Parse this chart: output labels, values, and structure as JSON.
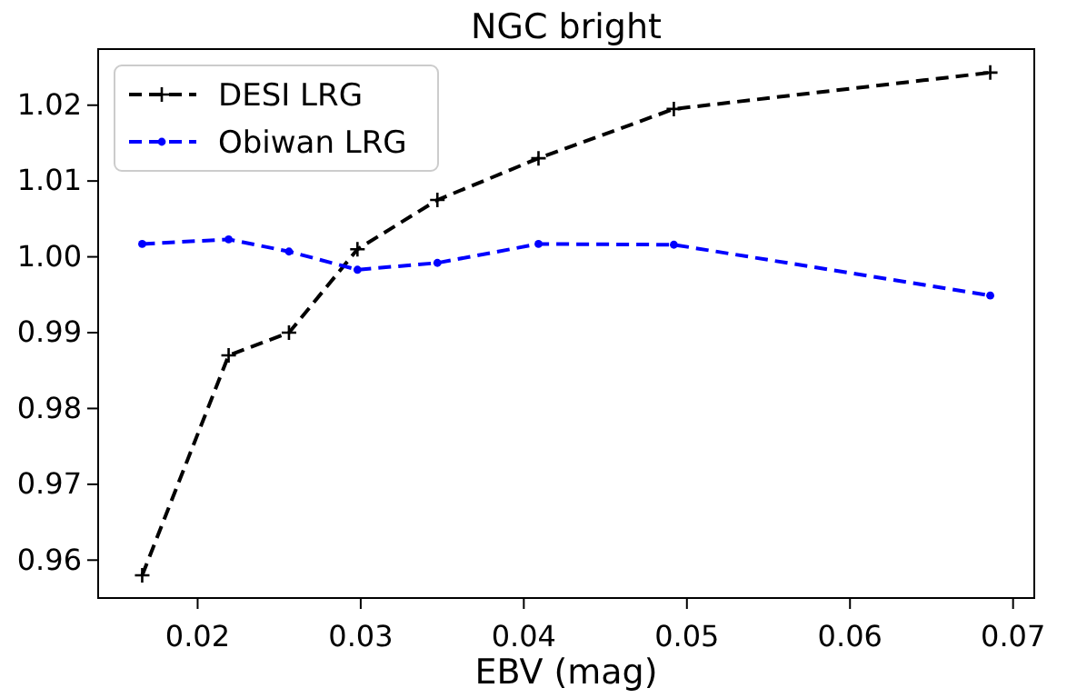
{
  "chart_data": {
    "type": "line",
    "title": "NGC bright",
    "xlabel": "EBV (mag)",
    "x": [
      0.0166,
      0.0219,
      0.0256,
      0.0298,
      0.0347,
      0.0409,
      0.0492,
      0.0686
    ],
    "series": [
      {
        "name": "DESI LRG",
        "color": "#000000",
        "marker": "cross",
        "values": [
          0.958,
          0.987,
          0.99,
          1.001,
          1.0075,
          1.013,
          1.0195,
          1.0243
        ]
      },
      {
        "name": "Obiwan LRG",
        "color": "#0000ff",
        "marker": "circle",
        "values": [
          1.0017,
          1.0023,
          1.0007,
          0.9983,
          0.9992,
          1.0017,
          1.0016,
          0.9949
        ]
      }
    ],
    "xlim": [
      0.0139,
      0.0713
    ],
    "xticks": [
      {
        "value": 0.02,
        "label": "0.02"
      },
      {
        "value": 0.03,
        "label": "0.03"
      },
      {
        "value": 0.04,
        "label": "0.04"
      },
      {
        "value": 0.05,
        "label": "0.05"
      },
      {
        "value": 0.06,
        "label": "0.06"
      },
      {
        "value": 0.07,
        "label": "0.07"
      }
    ],
    "ylim": [
      0.955,
      1.0274
    ],
    "yticks": [
      {
        "value": 0.96,
        "label": "0.96"
      },
      {
        "value": 0.97,
        "label": "0.97"
      },
      {
        "value": 0.98,
        "label": "0.98"
      },
      {
        "value": 0.99,
        "label": "0.99"
      },
      {
        "value": 1.0,
        "label": "1.00"
      },
      {
        "value": 1.01,
        "label": "1.01"
      },
      {
        "value": 1.02,
        "label": "1.02"
      }
    ],
    "line_style": "dashed",
    "legend": "top left",
    "grid": false
  }
}
